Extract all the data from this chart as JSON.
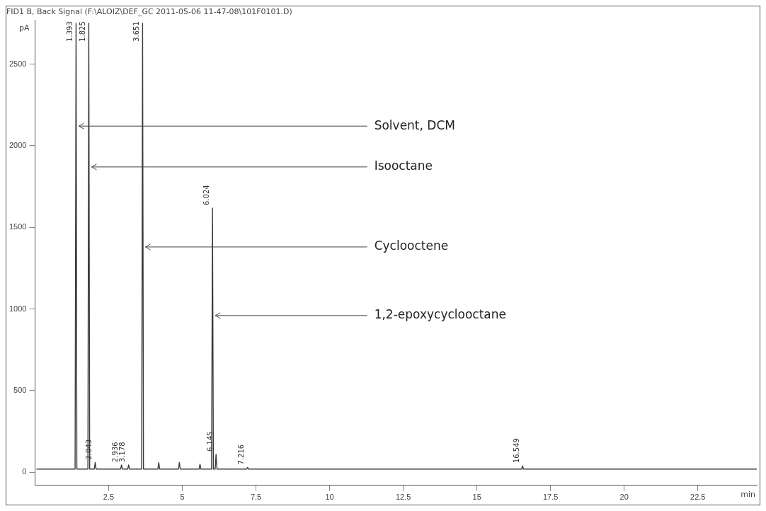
{
  "chart_data": {
    "type": "line",
    "title": "FID1 B, Back Signal (F:\\ALOIZ\\DEF_GC 2011-05-06 11-47-08\\101F0101.D)",
    "xlabel": "min",
    "ylabel": "pA",
    "xlim": [
      0,
      24.5
    ],
    "ylim": [
      -80,
      2770
    ],
    "xticks": [
      2.5,
      5,
      7.5,
      10,
      12.5,
      15,
      17.5,
      20,
      22.5
    ],
    "yticks": [
      0,
      500,
      1000,
      1500,
      2000,
      2500
    ],
    "grid": false,
    "legend": false,
    "marker": "none",
    "line_style": "solid",
    "series": [
      {
        "color": "#3a3a3a",
        "x": [
          0.05,
          1.36,
          1.393,
          1.42,
          1.795,
          1.825,
          1.855,
          2.013,
          2.043,
          2.073,
          2.906,
          2.936,
          2.966,
          3.148,
          3.178,
          3.208,
          3.621,
          3.651,
          3.681,
          4.17,
          4.2,
          4.23,
          4.87,
          4.9,
          4.93,
          5.57,
          5.6,
          5.63,
          5.994,
          6.024,
          6.054,
          6.115,
          6.145,
          6.175,
          7.186,
          7.216,
          7.246,
          16.519,
          16.549,
          16.579,
          24.5
        ],
        "values": [
          20,
          20,
          2750,
          20,
          20,
          2750,
          20,
          20,
          60,
          20,
          20,
          45,
          20,
          20,
          45,
          20,
          20,
          2750,
          20,
          20,
          60,
          20,
          20,
          60,
          20,
          20,
          50,
          20,
          20,
          1618,
          20,
          20,
          110,
          20,
          20,
          30,
          20,
          20,
          40,
          20,
          20
        ]
      }
    ],
    "annotations": [
      {
        "text": "1.393",
        "x": 1.393,
        "y": 2750
      },
      {
        "text": "1.825",
        "x": 1.825,
        "y": 2750
      },
      {
        "text": "2.043",
        "x": 2.043,
        "y": 60
      },
      {
        "text": "2.936",
        "x": 2.936,
        "y": 45
      },
      {
        "text": "3.178",
        "x": 3.178,
        "y": 45
      },
      {
        "text": "3.651",
        "x": 3.651,
        "y": 2750
      },
      {
        "text": "6.024",
        "x": 6.024,
        "y": 1618
      },
      {
        "text": "6.145",
        "x": 6.145,
        "y": 110
      },
      {
        "text": "7.216",
        "x": 7.216,
        "y": 30
      },
      {
        "text": "16.549",
        "x": 16.549,
        "y": 40
      },
      {
        "text": "Solvent, DCM",
        "x": 1.393,
        "y": 2120
      },
      {
        "text": "Isooctane",
        "x": 1.825,
        "y": 1870
      },
      {
        "text": "Cyclooctene",
        "x": 3.651,
        "y": 1380
      },
      {
        "text": "1,2-epoxycyclooctane",
        "x": 6.024,
        "y": 960
      }
    ]
  }
}
